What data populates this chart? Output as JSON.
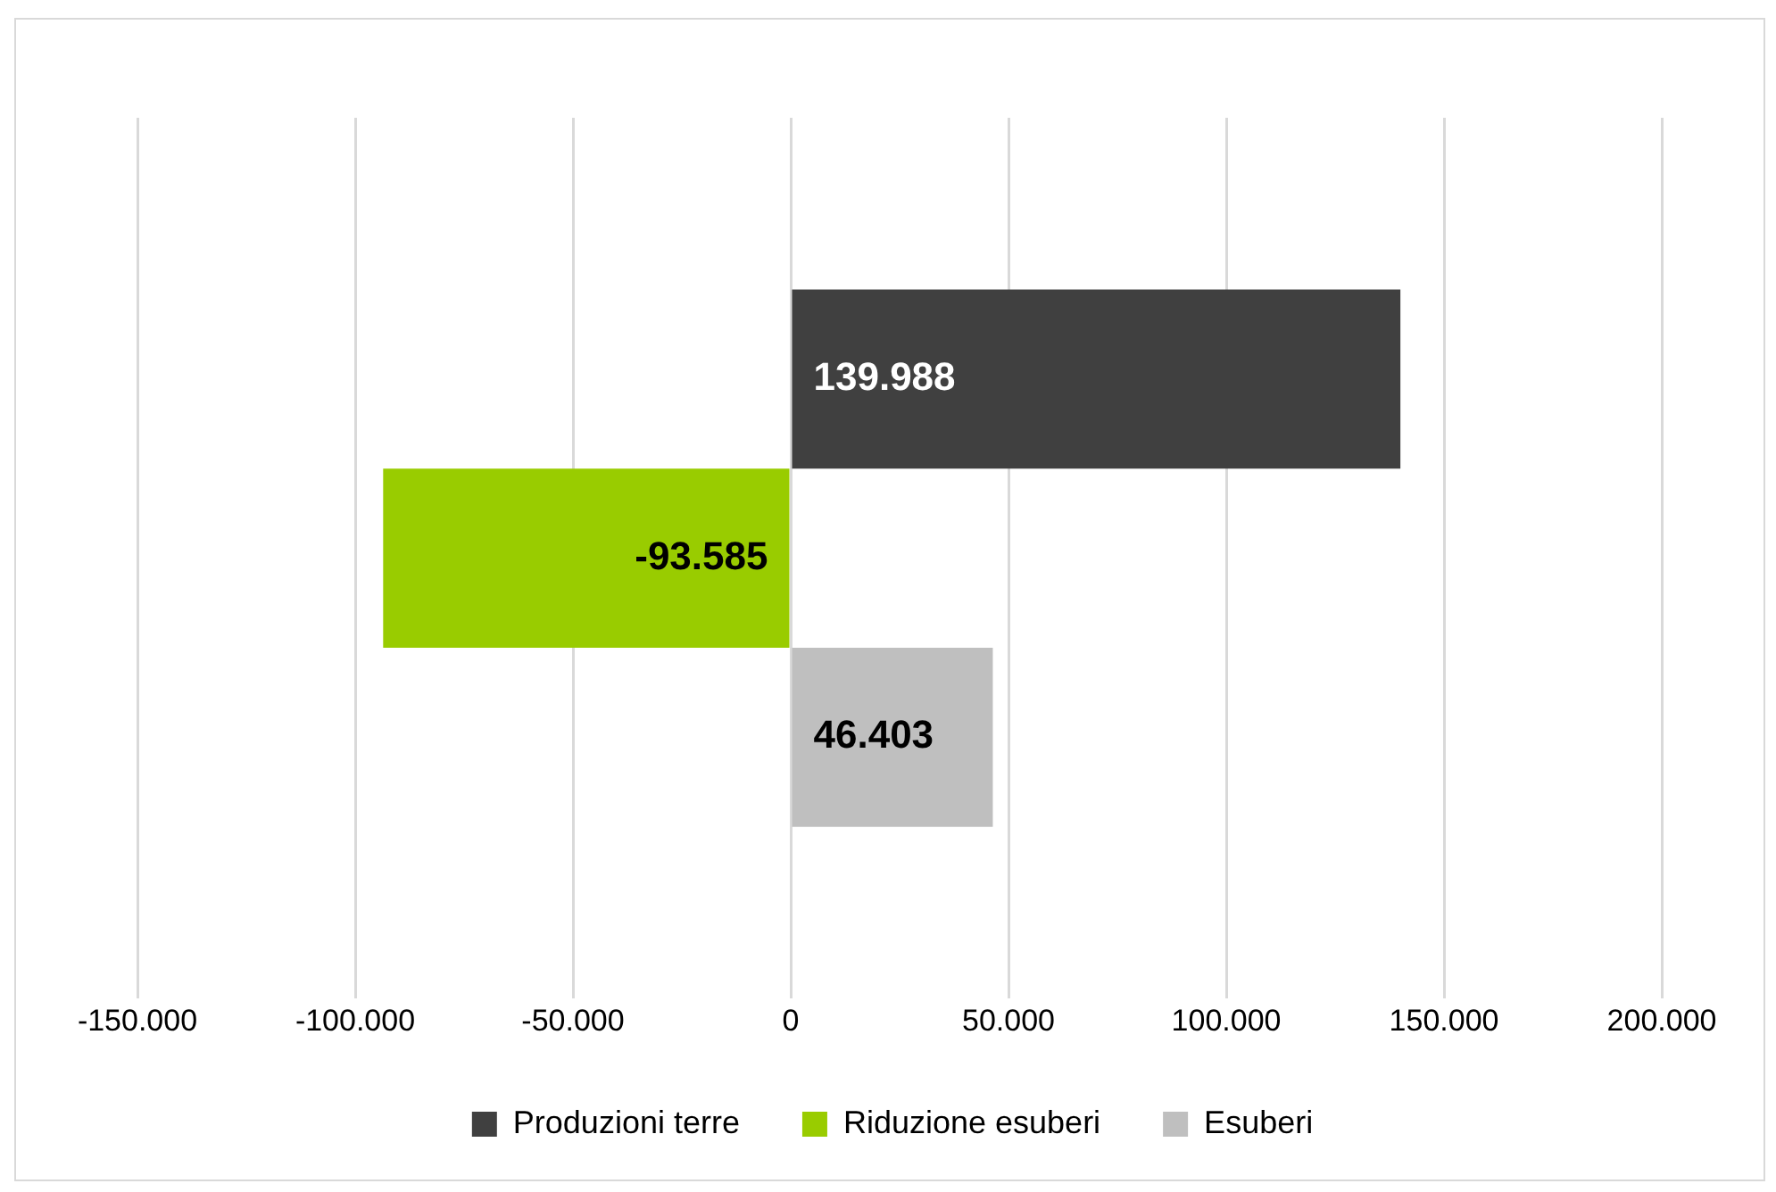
{
  "chart_data": {
    "type": "bar",
    "orientation": "horizontal",
    "categories": [
      null
    ],
    "series": [
      {
        "name": "Produzioni terre",
        "color": "#404040",
        "values": [
          139988
        ],
        "value_labels": [
          "139.988"
        ]
      },
      {
        "name": "Riduzione esuberi",
        "color": "#99cc00",
        "values": [
          -93585
        ],
        "value_labels": [
          "-93.585"
        ]
      },
      {
        "name": "Esuberi",
        "color": "#bfbfbf",
        "values": [
          46403
        ],
        "value_labels": [
          "46.403"
        ]
      }
    ],
    "xlim": [
      -150000,
      200000
    ],
    "xticks": [
      {
        "value": -150000,
        "label": "-150.000"
      },
      {
        "value": -100000,
        "label": "-100.000"
      },
      {
        "value": -50000,
        "label": "-50.000"
      },
      0,
      {
        "value": 50000,
        "label": "50.000"
      },
      {
        "value": 100000,
        "label": "100.000"
      },
      {
        "value": 150000,
        "label": "150.000"
      },
      {
        "value": 200000,
        "label": "200.000"
      }
    ],
    "grid": "x",
    "legend": "bottom"
  }
}
